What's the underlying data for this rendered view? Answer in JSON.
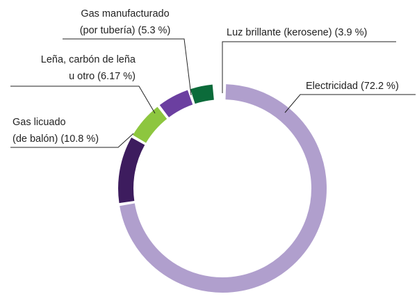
{
  "chart_data": {
    "type": "donut",
    "values": [
      72.2,
      10.8,
      6.17,
      5.3,
      3.9
    ],
    "value_labels": [
      [
        "Electricidad (72.2 %)"
      ],
      [
        "Gas licuado",
        "(de balón) (10.8 %)"
      ],
      [
        "Leña, carbón de leña",
        "u otro (6.17 %)"
      ],
      [
        "Gas manufacturado",
        "(por tubería) (5.3 %)"
      ],
      [
        "Luz brillante (kerosene) (3.9 %)"
      ]
    ],
    "colors": [
      "#b09fcd",
      "#3d1c5e",
      "#8dc63f",
      "#6b3fa0",
      "#0b6b3a"
    ]
  }
}
